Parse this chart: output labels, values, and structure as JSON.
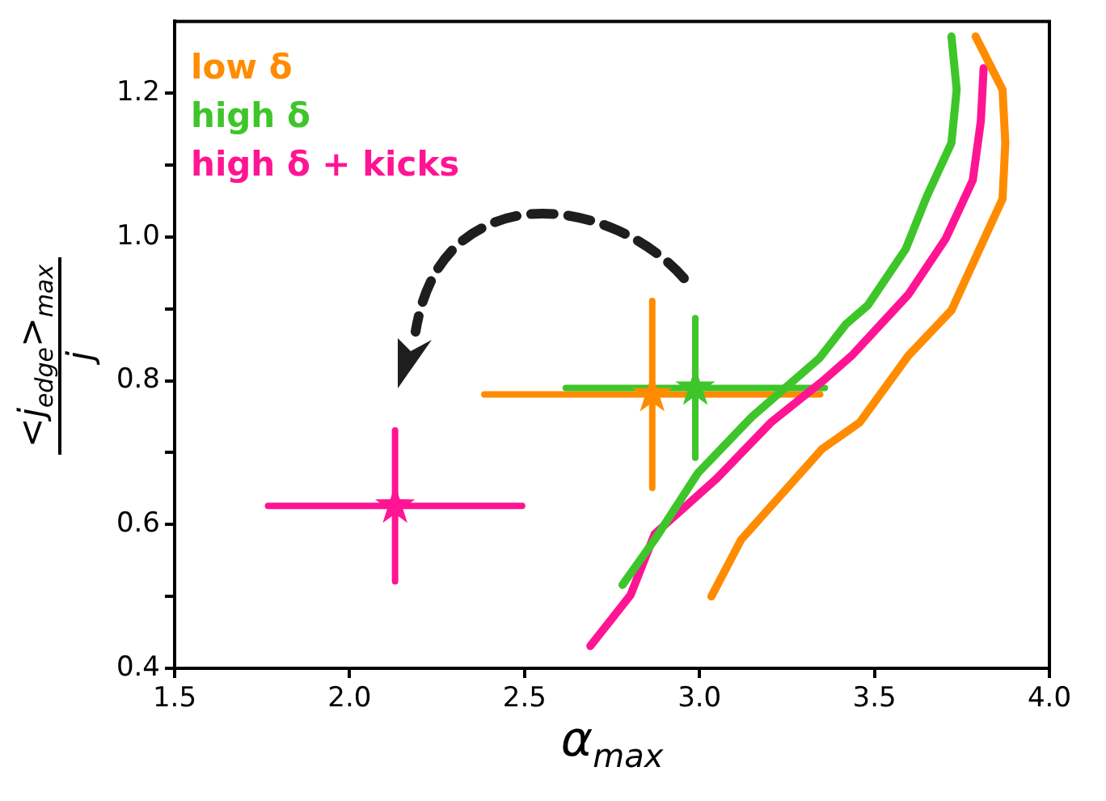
{
  "chart_data": {
    "type": "line",
    "xlabel": "α$_{max}$",
    "ylabel": "<j$_{edge}$>$_{max}$ j",
    "xlim": [
      1.5,
      4.0
    ],
    "ylim": [
      0.4,
      1.3
    ],
    "xticks": [
      1.5,
      {
        "value": 2,
        "label": "2.0"
      },
      2.5,
      {
        "value": 3,
        "label": "3.0"
      },
      3.5,
      {
        "value": 4,
        "label": "4.0"
      }
    ],
    "yticks": [
      0.4,
      {
        "value": 0.5,
        "label": null
      },
      0.6,
      {
        "value": 0.7,
        "label": null
      },
      0.8,
      {
        "value": 0.9,
        "label": null
      },
      {
        "value": 1,
        "label": "1.0"
      },
      {
        "value": 1.1,
        "label": null
      },
      1.2
    ],
    "grid": false,
    "legend": "top left",
    "series": [
      {
        "name": "low δ",
        "color": "#ff8c00",
        "marker": "none",
        "x": [
          3.034,
          3.119,
          3.35,
          3.458,
          3.597,
          3.72,
          3.866,
          3.874,
          3.866,
          3.789
        ],
        "values": [
          0.5,
          0.579,
          0.705,
          0.742,
          0.835,
          0.898,
          1.053,
          1.131,
          1.205,
          1.279
        ]
      },
      {
        "name": "high δ",
        "color": "#3ec52a",
        "marker": "none",
        "x": [
          2.78,
          2.872,
          2.996,
          3.15,
          3.342,
          3.419,
          3.481,
          3.589,
          3.65,
          3.72,
          3.735,
          3.72
        ],
        "values": [
          0.516,
          0.579,
          0.672,
          0.75,
          0.831,
          0.879,
          0.905,
          0.983,
          1.057,
          1.131,
          1.205,
          1.279
        ]
      },
      {
        "name": "high δ + kicks",
        "color": "#ff1493",
        "marker": "none",
        "x": [
          2.688,
          2.803,
          2.872,
          3.049,
          3.204,
          3.358,
          3.435,
          3.597,
          3.704,
          3.781,
          3.804,
          3.812
        ],
        "values": [
          0.431,
          0.502,
          0.587,
          0.664,
          0.742,
          0.802,
          0.835,
          0.92,
          0.998,
          1.079,
          1.161,
          1.235
        ]
      },
      {
        "color": "#ff8c00",
        "type": "scatter",
        "marker": "star",
        "x": [
          2.865
        ],
        "values": [
          0.781
        ],
        "errors": [
          0.13
        ],
        "xerrors": [
          0.48
        ]
      },
      {
        "color": "#3ec52a",
        "type": "scatter",
        "marker": "star",
        "x": [
          2.988
        ],
        "values": [
          0.79
        ],
        "errors": [
          0.097
        ],
        "xerrors": [
          0.37
        ]
      },
      {
        "color": "#ff1493",
        "type": "scatter",
        "marker": "star",
        "x": [
          2.13
        ],
        "values": [
          0.626
        ],
        "errors": [
          0.105
        ],
        "xerrors": [
          0.363
        ]
      }
    ]
  }
}
